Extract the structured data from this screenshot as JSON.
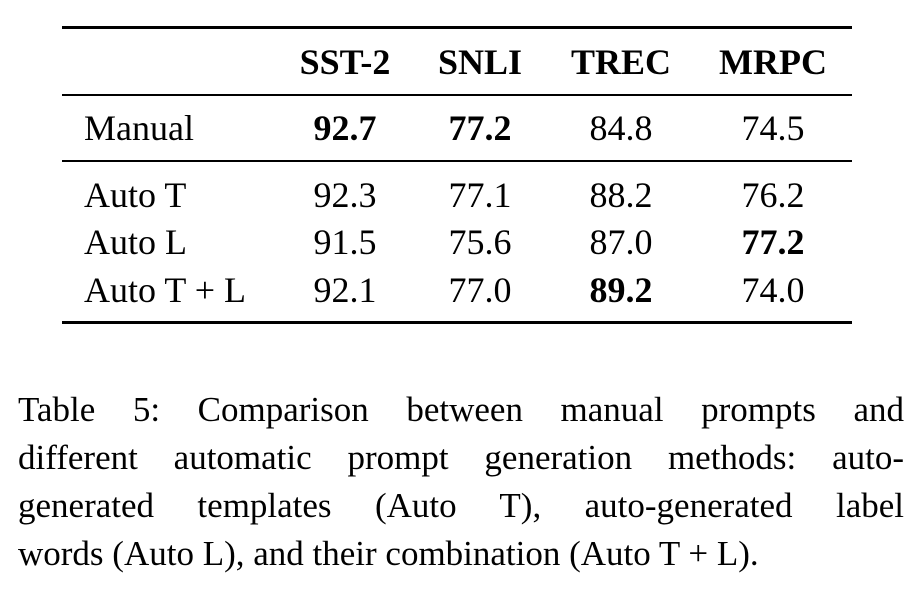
{
  "table": {
    "headers": [
      "",
      "SST-2",
      "SNLI",
      "TREC",
      "MRPC"
    ],
    "rows": [
      {
        "label": "Manual",
        "values": [
          "92.7",
          "77.2",
          "84.8",
          "74.5"
        ],
        "bold": [
          true,
          true,
          false,
          false
        ]
      },
      {
        "label": "Auto T",
        "values": [
          "92.3",
          "77.1",
          "88.2",
          "76.2"
        ],
        "bold": [
          false,
          false,
          false,
          false
        ]
      },
      {
        "label": "Auto L",
        "values": [
          "91.5",
          "75.6",
          "87.0",
          "77.2"
        ],
        "bold": [
          false,
          false,
          false,
          true
        ]
      },
      {
        "label": "Auto T + L",
        "values": [
          "92.1",
          "77.0",
          "89.2",
          "74.0"
        ],
        "bold": [
          false,
          false,
          true,
          false
        ]
      }
    ]
  },
  "caption": {
    "lines": [
      "Table 5:  Comparison between manual prompts and",
      "different automatic prompt generation methods: auto-",
      "generated templates (Auto T), auto-generated label",
      "words (Auto L), and their combination (Auto T + L)."
    ]
  }
}
